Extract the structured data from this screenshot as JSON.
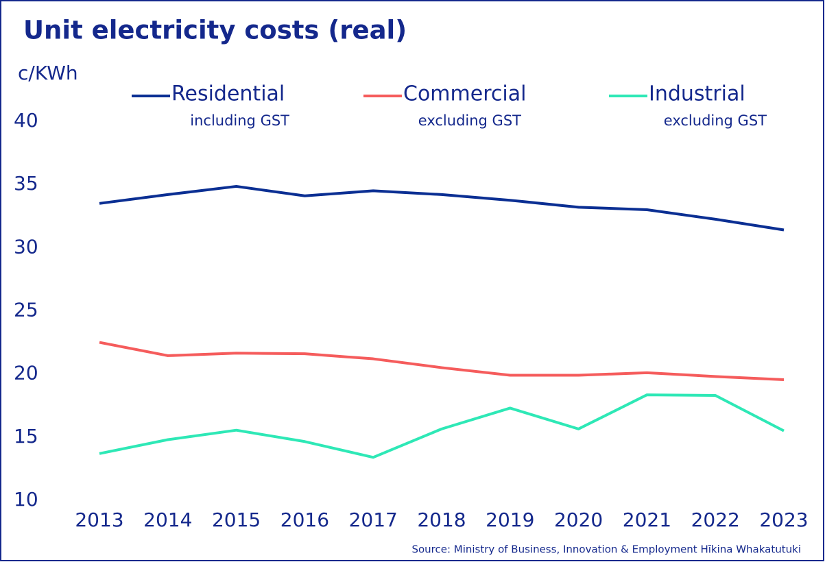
{
  "chart_data": {
    "type": "line",
    "title": "Unit electricity costs (real)",
    "ylabel": "c/KWh",
    "source": "Source: Ministry of Business, Innovation & Employment Hīkina Whakatutuki",
    "categories": [
      "2013",
      "2014",
      "2015",
      "2016",
      "2017",
      "2018",
      "2019",
      "2020",
      "2021",
      "2022",
      "2023"
    ],
    "series": [
      {
        "name": "Residential",
        "note": "including GST",
        "color": "#0b2f93",
        "values": [
          33.5,
          34.2,
          34.85,
          34.1,
          34.5,
          34.2,
          33.75,
          33.2,
          33.0,
          32.25,
          31.4
        ]
      },
      {
        "name": "Commercial",
        "note": "excluding GST",
        "color": "#f55c5c",
        "values": [
          22.5,
          21.45,
          21.65,
          21.6,
          21.2,
          20.5,
          19.9,
          19.9,
          20.1,
          19.8,
          19.55
        ]
      },
      {
        "name": "Industrial",
        "note": "excluding GST",
        "color": "#2ee8b6",
        "values": [
          13.7,
          14.8,
          15.55,
          14.65,
          13.4,
          15.65,
          17.3,
          15.65,
          18.35,
          18.3,
          15.5
        ]
      }
    ],
    "ylim": [
      10,
      40
    ],
    "yticks": [
      10,
      15,
      20,
      25,
      30,
      35,
      40
    ],
    "grid": false
  }
}
